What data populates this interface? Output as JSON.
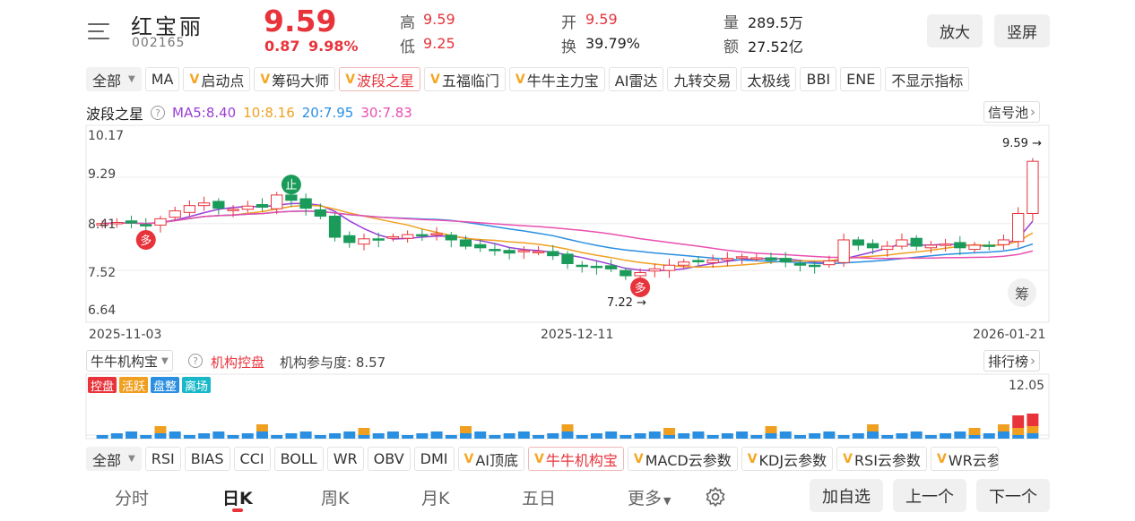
{
  "header": {
    "name": "红宝丽",
    "code": "002165",
    "price": "9.59",
    "change": "0.87",
    "change_pct": "9.98%",
    "high_label": "高",
    "high": "9.59",
    "low_label": "低",
    "low": "9.25",
    "open_label": "开",
    "open": "9.59",
    "turnover_label": "换",
    "turnover": "39.79%",
    "volume_label": "量",
    "volume": "289.5万",
    "amount_label": "额",
    "amount": "27.52亿",
    "zoom_button": "放大",
    "portrait_button": "竖屏"
  },
  "indicator_toolbar": {
    "select": "全部",
    "items": [
      "MA",
      "启动点",
      "筹码大师",
      "波段之星",
      "五福临门",
      "牛牛主力宝",
      "AI雷达",
      "九转交易",
      "太极线",
      "BBI",
      "ENE",
      "不显示指标"
    ]
  },
  "main_legend": {
    "name": "波段之星",
    "ma5": "MA5:8.40",
    "ma10": "10:8.16",
    "ma20": "20:7.95",
    "ma30": "30:7.83",
    "signal_pool": "信号池"
  },
  "colors": {
    "up": "#e8333b",
    "down": "#1a9b5a",
    "ma5": "#9b3fd6",
    "ma10": "#f0a020",
    "ma20": "#2a8fe0",
    "ma30": "#e94fb0"
  },
  "chart_data": {
    "type": "candlestick",
    "y_ticks": [
      "10.17",
      "9.29",
      "8.41",
      "7.52",
      "6.64"
    ],
    "x_labels": [
      "2025-11-03",
      "2025-12-11",
      "2026-01-21"
    ],
    "high_marker": "9.59 →",
    "low_marker": "7.22 →",
    "markers": [
      {
        "text": "多",
        "type": "buy"
      },
      {
        "text": "止",
        "type": "stop"
      },
      {
        "text": "多",
        "type": "buy"
      }
    ],
    "chip_button": "筹"
  },
  "sub_panel": {
    "select": "牛牛机构宝",
    "name": "机构控盘",
    "participation": "机构参与度: 8.57",
    "rank_button": "排行榜",
    "tags": [
      "控盘",
      "活跃",
      "盘整",
      "离场"
    ],
    "tag_colors": [
      "#e8333b",
      "#f0a020",
      "#2a8fe0",
      "#19b8c8"
    ],
    "max_label": "12.05"
  },
  "sub_toolbar": {
    "select": "全部",
    "items": [
      "RSI",
      "BIAS",
      "CCI",
      "BOLL",
      "WR",
      "OBV",
      "DMI",
      "AI顶底",
      "牛牛机构宝",
      "MACD云参数",
      "KDJ云参数",
      "RSI云参数",
      "WR云参"
    ]
  },
  "bottom_nav": {
    "tabs": [
      "分时",
      "日K",
      "周K",
      "月K",
      "五日",
      "更多"
    ],
    "add_watch": "加自选",
    "prev": "上一个",
    "next": "下一个"
  }
}
